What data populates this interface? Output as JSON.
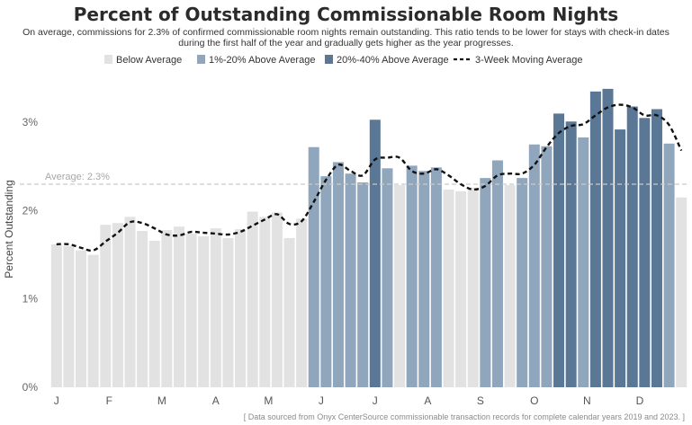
{
  "title": "Percent of Outstanding Commissionable Room Nights",
  "subtitle_line1": "On average, commissions for 2.3% of confirmed commissionable room nights remain outstanding. This ratio tends to be lower for stays with check-in dates",
  "subtitle_line2": "during the first half of the year and gradually gets higher as the year progresses.",
  "source_note": "[ Data sourced from Onyx CenterSource commissionable transaction records for complete calendar years 2019 and 2023. ]",
  "colors": {
    "below": "#e2e2e2",
    "mid": "#8fa6bd",
    "high": "#5a7796",
    "moving": "#111111",
    "average_line": "#c9c9c9",
    "average_label": "#a8a8a8"
  },
  "chart_data": {
    "type": "bar",
    "ylabel": "Percent Outstanding",
    "ylim": [
      0,
      3.45
    ],
    "yticks": [
      {
        "value": 0,
        "label": "0%"
      },
      {
        "value": 1,
        "label": "1%"
      },
      {
        "value": 2,
        "label": "2%"
      },
      {
        "value": 3,
        "label": "3%"
      }
    ],
    "xticks": [
      {
        "index": 0,
        "label": "J"
      },
      {
        "index": 4.3,
        "label": "F"
      },
      {
        "index": 8.6,
        "label": "M"
      },
      {
        "index": 13,
        "label": "A"
      },
      {
        "index": 17.3,
        "label": "M"
      },
      {
        "index": 21.6,
        "label": "J"
      },
      {
        "index": 26,
        "label": "J"
      },
      {
        "index": 30.3,
        "label": "A"
      },
      {
        "index": 34.6,
        "label": "S"
      },
      {
        "index": 39,
        "label": "O"
      },
      {
        "index": 43.3,
        "label": "N"
      },
      {
        "index": 47.6,
        "label": "D"
      }
    ],
    "average": {
      "value": 2.3,
      "label": "Average: 2.3%"
    },
    "legend": {
      "position": "top",
      "entries": [
        {
          "label": "Below Average",
          "category": "below"
        },
        {
          "label": "1%-20% Above Average",
          "category": "mid"
        },
        {
          "label": "20%-40% Above Average",
          "category": "high"
        },
        {
          "label": "3-Week Moving Average",
          "category": "moving"
        }
      ]
    },
    "values": [
      1.62,
      1.6,
      1.55,
      1.5,
      1.84,
      1.86,
      1.93,
      1.77,
      1.66,
      1.78,
      1.82,
      1.74,
      1.71,
      1.8,
      1.69,
      1.79,
      1.99,
      1.93,
      1.98,
      1.69,
      1.91,
      2.72,
      2.39,
      2.55,
      2.42,
      2.32,
      3.03,
      2.48,
      2.29,
      2.51,
      2.45,
      2.49,
      2.24,
      2.22,
      2.26,
      2.37,
      2.57,
      2.29,
      2.37,
      2.75,
      2.73,
      3.1,
      3.01,
      2.83,
      3.35,
      3.38,
      2.92,
      3.18,
      3.05,
      3.15,
      2.76,
      2.15
    ],
    "categories": [
      "below",
      "below",
      "below",
      "below",
      "below",
      "below",
      "below",
      "below",
      "below",
      "below",
      "below",
      "below",
      "below",
      "below",
      "below",
      "below",
      "below",
      "below",
      "below",
      "below",
      "below",
      "mid",
      "mid",
      "mid",
      "mid",
      "mid",
      "high",
      "mid",
      "below",
      "mid",
      "mid",
      "mid",
      "below",
      "below",
      "below",
      "mid",
      "mid",
      "below",
      "mid",
      "mid",
      "mid",
      "high",
      "high",
      "mid",
      "high",
      "high",
      "high",
      "high",
      "high",
      "high",
      "mid",
      "below"
    ],
    "moving_average": [
      1.62,
      1.62,
      1.58,
      1.55,
      1.65,
      1.75,
      1.87,
      1.86,
      1.8,
      1.73,
      1.72,
      1.76,
      1.75,
      1.74,
      1.73,
      1.76,
      1.83,
      1.9,
      1.96,
      1.85,
      1.88,
      2.1,
      2.35,
      2.52,
      2.45,
      2.4,
      2.58,
      2.6,
      2.6,
      2.45,
      2.42,
      2.47,
      2.4,
      2.3,
      2.24,
      2.28,
      2.4,
      2.42,
      2.42,
      2.52,
      2.72,
      2.88,
      2.96,
      2.98,
      3.08,
      3.17,
      3.2,
      3.17,
      3.08,
      3.08,
      2.97,
      2.68
    ]
  }
}
